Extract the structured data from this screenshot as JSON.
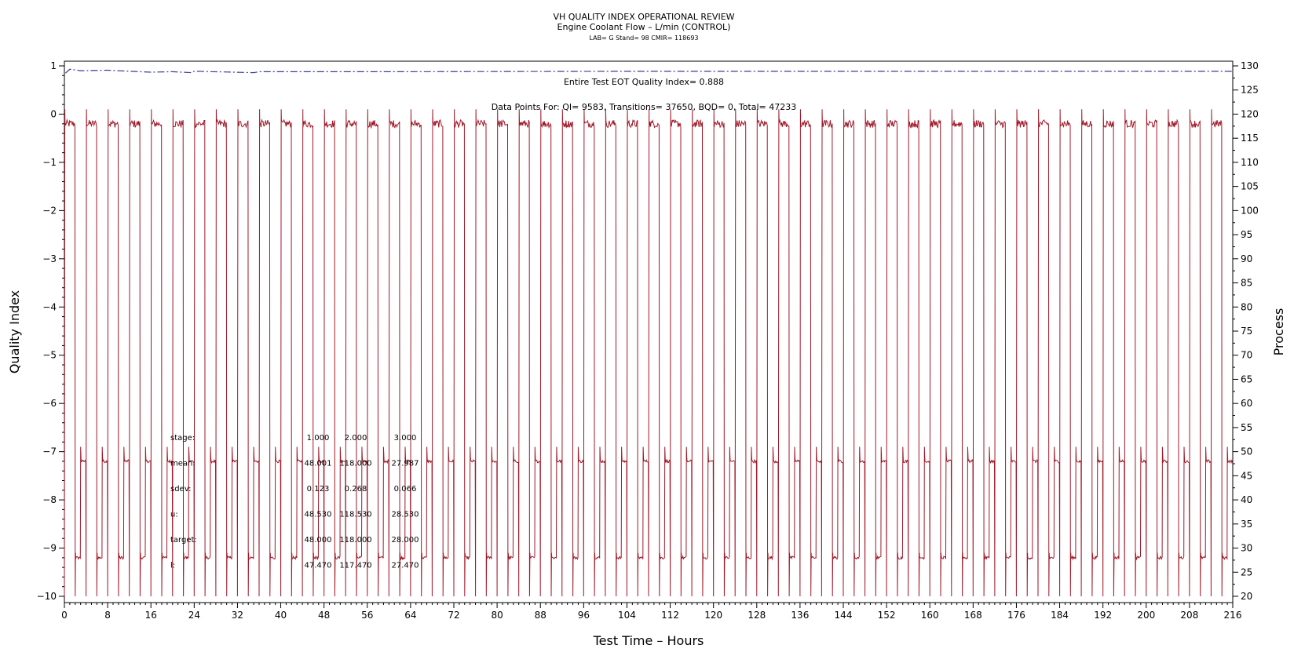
{
  "chart_data": {
    "type": "line",
    "title": "VH QUALITY INDEX OPERATIONAL REVIEW",
    "subtitle": "Engine Coolant Flow – L/min (CONTROL)",
    "subsubtitle": "LAB= G Stand= 98 CMIR= 118693",
    "xlabel": "Test Time – Hours",
    "ylabel_left": "Quality Index",
    "ylabel_right": "Process",
    "xlim": [
      0,
      216
    ],
    "ylim_left": [
      -10,
      1
    ],
    "ylim_right": [
      20,
      130
    ],
    "x_ticks": [
      0,
      8,
      16,
      24,
      32,
      40,
      48,
      56,
      64,
      72,
      80,
      88,
      96,
      104,
      112,
      120,
      128,
      136,
      144,
      152,
      160,
      168,
      176,
      184,
      192,
      200,
      208,
      216
    ],
    "y_left_ticks": [
      1,
      0,
      -1,
      -2,
      -3,
      -4,
      -5,
      -6,
      -7,
      -8,
      -9,
      -10
    ],
    "y_right_ticks": [
      130,
      125,
      120,
      115,
      110,
      105,
      100,
      95,
      90,
      85,
      80,
      75,
      70,
      65,
      60,
      55,
      50,
      45,
      40,
      35,
      30,
      25,
      20
    ],
    "annotations": {
      "quality_index": "Entire Test EOT Quality Index=   0.888",
      "data_points": "Data Points For: QI=  9583, Transitions= 37650, BQD=     0, Total= 47233"
    },
    "series": [
      {
        "axis": "left",
        "color": "#3a3a9a",
        "style": "dash-dot",
        "points": [
          [
            0.2,
            0.85
          ],
          [
            1,
            0.93
          ],
          [
            3,
            0.9
          ],
          [
            8,
            0.91
          ],
          [
            12,
            0.89
          ],
          [
            16,
            0.87
          ],
          [
            20,
            0.88
          ],
          [
            23.5,
            0.86
          ],
          [
            24,
            0.89
          ],
          [
            35,
            0.86
          ],
          [
            36,
            0.88
          ],
          [
            60,
            0.88
          ],
          [
            100,
            0.888
          ],
          [
            160,
            0.888
          ],
          [
            216,
            0.888
          ]
        ]
      },
      {
        "axis": "right",
        "color": "#a01828",
        "style": "solid",
        "cycle_hours": 4,
        "stage_levels": [
          48,
          118,
          28
        ],
        "stage_boundaries_in_cycle": [
          0.35,
          2.35,
          3.35
        ],
        "first_cycle_start": -0.35,
        "cycles": 54
      }
    ],
    "stats_table": {
      "row_labels": [
        "stage:",
        "mean:",
        "sdev:",
        "u:",
        "target:",
        "l:"
      ],
      "columns": [
        [
          "1.000",
          "48.001",
          "0.123",
          "48.530",
          "48.000",
          "47.470"
        ],
        [
          "2.000",
          "118.000",
          "0.268",
          "118.530",
          "118.000",
          "117.470"
        ],
        [
          "3.000",
          "27.987",
          "0.066",
          "28.530",
          "28.000",
          "27.470"
        ]
      ]
    }
  }
}
